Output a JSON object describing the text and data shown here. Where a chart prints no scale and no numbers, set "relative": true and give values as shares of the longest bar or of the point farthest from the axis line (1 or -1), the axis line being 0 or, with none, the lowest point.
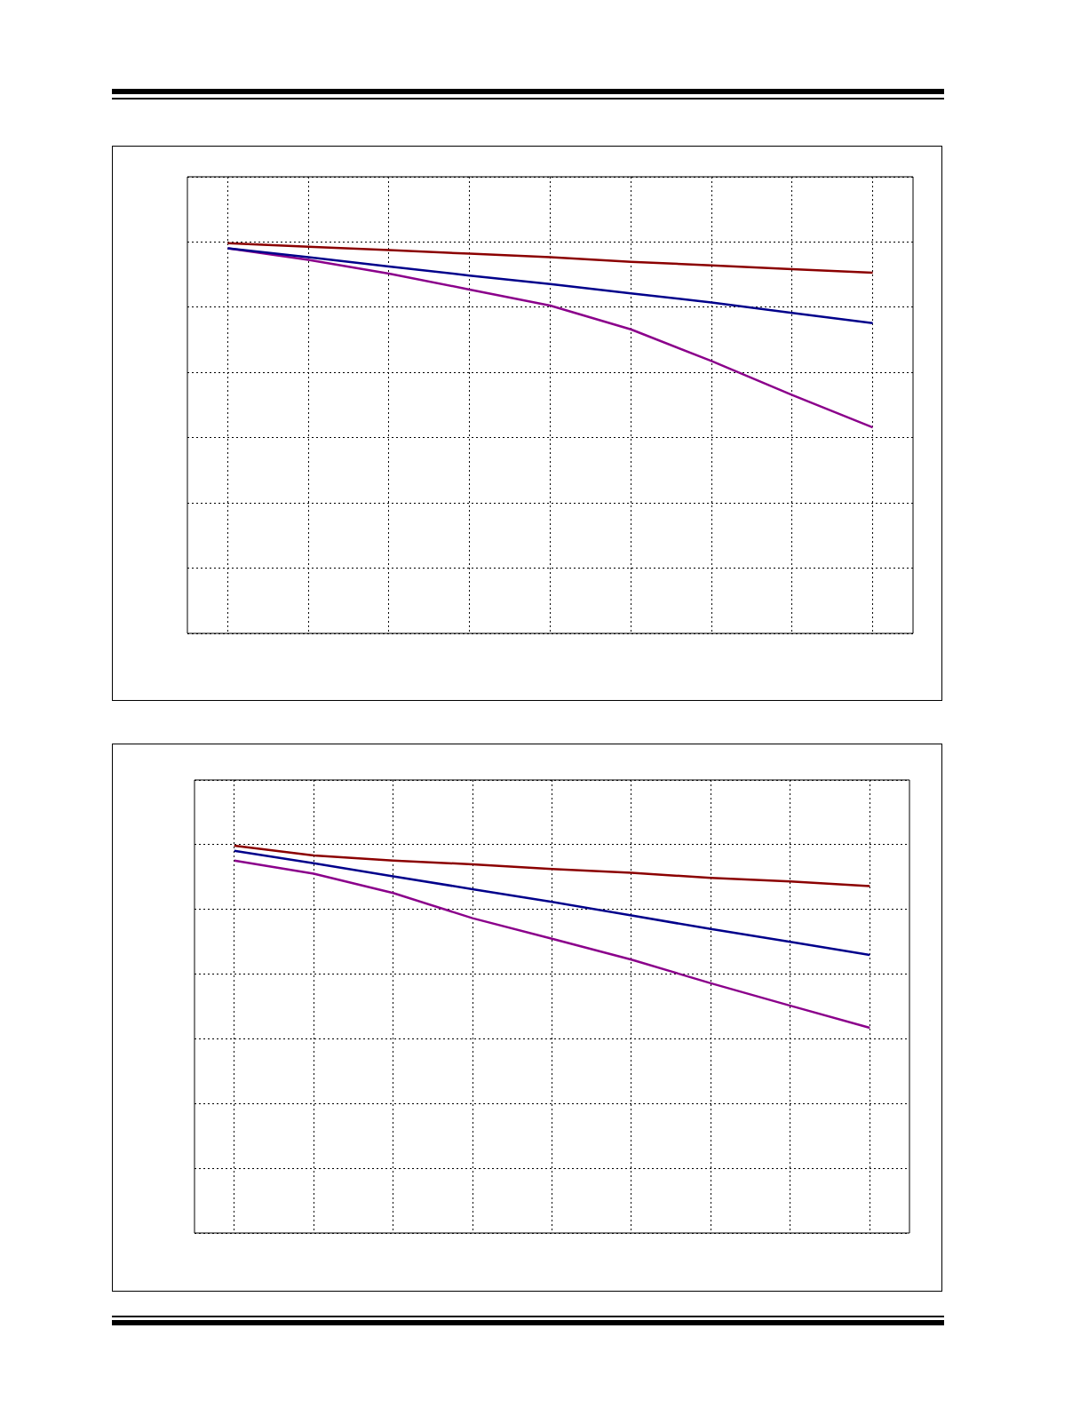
{
  "chart_data": [
    {
      "type": "line",
      "relative": true,
      "grid": true,
      "categories": [
        null,
        null,
        null,
        null,
        null,
        null,
        null,
        null,
        null
      ],
      "series": [
        {
          "color": "#8b0000",
          "values": [
            1,
            0.991,
            0.982,
            0.973,
            0.964,
            0.952,
            0.943,
            0.933,
            0.924
          ]
        },
        {
          "color": "#00008b",
          "values": [
            0.987,
            0.964,
            0.94,
            0.917,
            0.895,
            0.871,
            0.848,
            0.821,
            0.795
          ]
        },
        {
          "color": "#8b008b",
          "values": [
            0.987,
            0.957,
            0.922,
            0.881,
            0.84,
            0.779,
            0.698,
            0.611,
            0.528
          ]
        }
      ]
    },
    {
      "type": "line",
      "relative": true,
      "grid": true,
      "categories": [
        null,
        null,
        null,
        null,
        null,
        null,
        null,
        null,
        null
      ],
      "series": [
        {
          "color": "#8b0000",
          "values": [
            1,
            0.975,
            0.962,
            0.952,
            0.94,
            0.93,
            0.917,
            0.908,
            0.896
          ]
        },
        {
          "color": "#00008b",
          "values": [
            0.987,
            0.955,
            0.921,
            0.888,
            0.855,
            0.82,
            0.785,
            0.752,
            0.718
          ]
        },
        {
          "color": "#8b008b",
          "values": [
            0.962,
            0.928,
            0.878,
            0.813,
            0.76,
            0.706,
            0.645,
            0.587,
            0.53
          ]
        }
      ]
    }
  ]
}
